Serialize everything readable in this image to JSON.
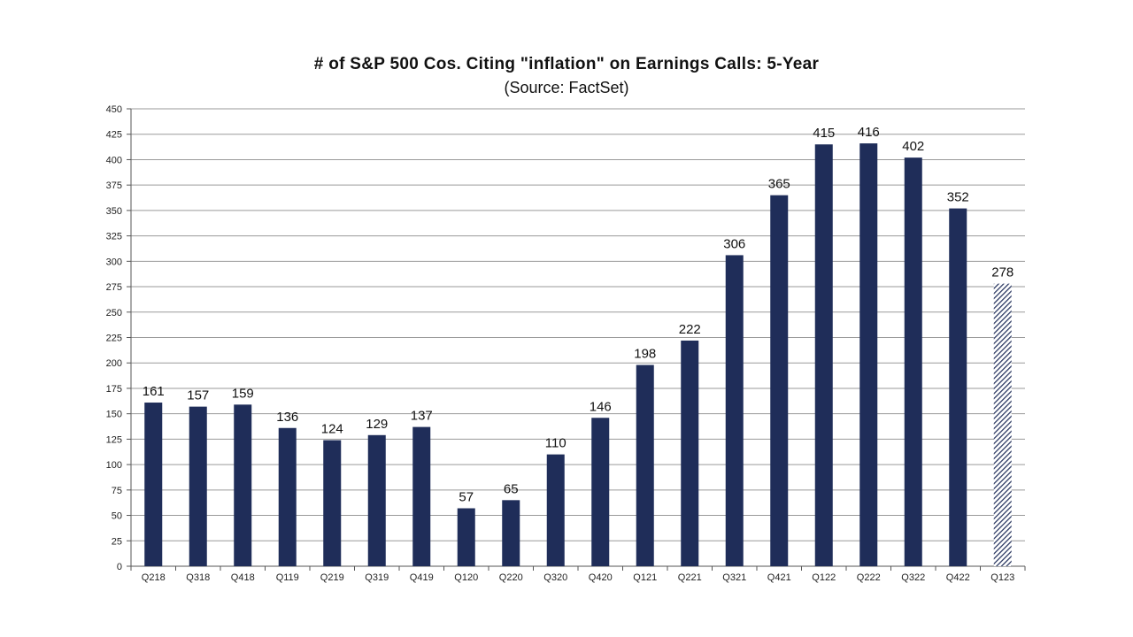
{
  "chart_data": {
    "type": "bar",
    "title": "# of S&P 500 Cos. Citing \"inflation\" on Earnings Calls: 5-Year",
    "subtitle": "(Source: FactSet)",
    "xlabel": "",
    "ylabel": "",
    "ylim": [
      0,
      450
    ],
    "ytick_step": 25,
    "grid": true,
    "categories": [
      "Q218",
      "Q318",
      "Q418",
      "Q119",
      "Q219",
      "Q319",
      "Q419",
      "Q120",
      "Q220",
      "Q320",
      "Q420",
      "Q121",
      "Q221",
      "Q321",
      "Q421",
      "Q122",
      "Q222",
      "Q322",
      "Q422",
      "Q123"
    ],
    "values": [
      161,
      157,
      159,
      136,
      124,
      129,
      137,
      57,
      65,
      110,
      146,
      198,
      222,
      306,
      365,
      415,
      416,
      402,
      352,
      278
    ],
    "bar_color": "#1f2d59",
    "hatched_last_bar": true
  }
}
